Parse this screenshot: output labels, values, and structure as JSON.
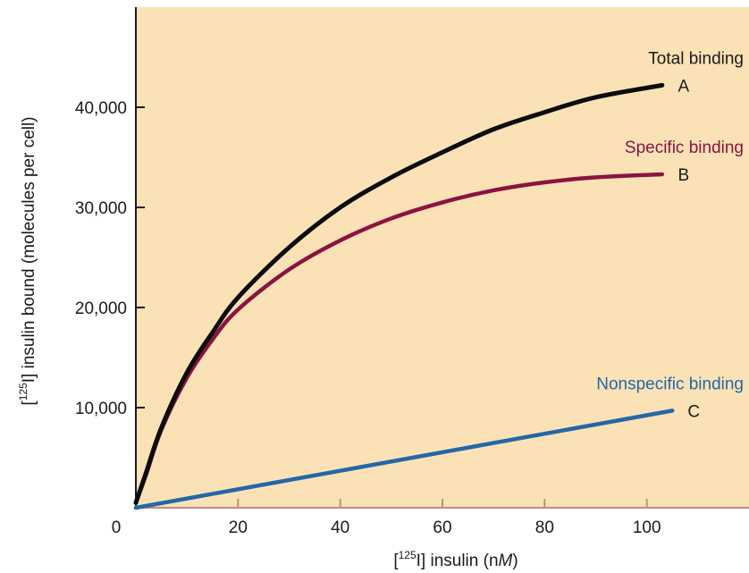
{
  "colors": {
    "plot_background": "#fbe2b6",
    "axis": "#1a1a1a",
    "zero_line": "#c98888"
  },
  "chart_data": {
    "type": "line",
    "xlabel": {
      "prefix": "[",
      "isotope": "125",
      "suffix": "I] insulin (n",
      "unit_italic": "M",
      "close": ")"
    },
    "ylabel": {
      "prefix": "[",
      "isotope": "125",
      "suffix": "I] insulin bound (molecules per cell)"
    },
    "xlim": [
      0,
      120
    ],
    "ylim": [
      0,
      50000
    ],
    "x_ticks": [
      0,
      20,
      40,
      60,
      80,
      100
    ],
    "x_tick_labels": [
      "0",
      "20",
      "40",
      "60",
      "80",
      "100"
    ],
    "y_ticks": [
      10000,
      20000,
      30000,
      40000
    ],
    "y_tick_labels": [
      "10,000",
      "20,000",
      "30,000",
      "40,000"
    ],
    "grid": false,
    "series": [
      {
        "name": "Total binding",
        "letter": "A",
        "color": "#0c0c0c",
        "x": [
          0,
          2,
          5,
          10,
          15,
          20,
          30,
          40,
          50,
          60,
          70,
          80,
          90,
          103
        ],
        "y": [
          500,
          3500,
          8000,
          13500,
          17500,
          21000,
          26000,
          30000,
          33000,
          35500,
          37800,
          39500,
          41000,
          42200
        ]
      },
      {
        "name": "Specific binding",
        "letter": "B",
        "color": "#8b1342",
        "x": [
          0,
          2,
          5,
          10,
          15,
          20,
          30,
          40,
          50,
          60,
          70,
          80,
          90,
          103
        ],
        "y": [
          500,
          3300,
          7800,
          13000,
          16800,
          19800,
          23800,
          26700,
          28900,
          30500,
          31700,
          32500,
          33000,
          33300
        ]
      },
      {
        "name": "Nonspecific binding",
        "letter": "C",
        "color": "#2467a8",
        "x": [
          0,
          105
        ],
        "y": [
          0,
          9700
        ]
      }
    ]
  }
}
